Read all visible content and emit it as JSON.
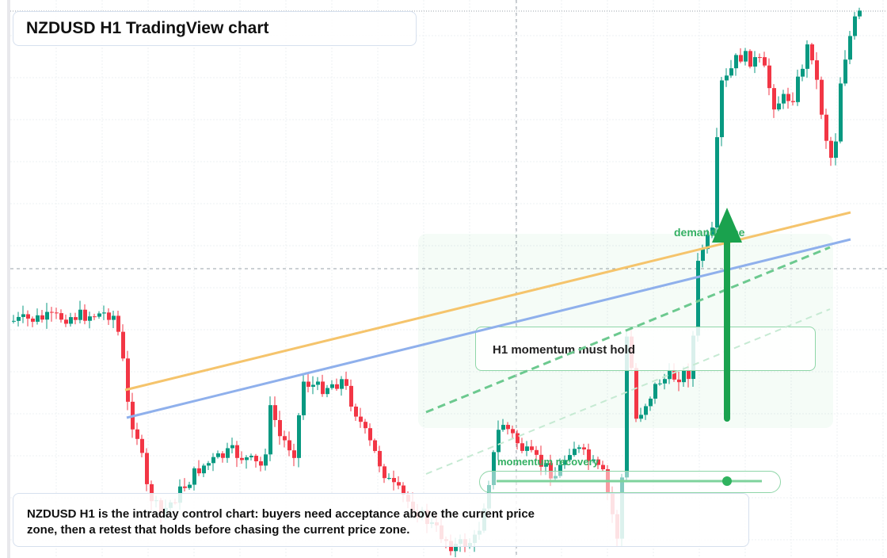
{
  "header": {
    "title": "NZDUSD H1 TradingView chart"
  },
  "annotations": {
    "zone": "demand zone",
    "momentum": "H1 momentum must hold",
    "recovery": "momentum recovery"
  },
  "caption": {
    "text": "NZDUSD H1 is the intraday control chart: buyers need acceptance above the current price zone, then a retest that holds before chasing the current price zone."
  }
}
